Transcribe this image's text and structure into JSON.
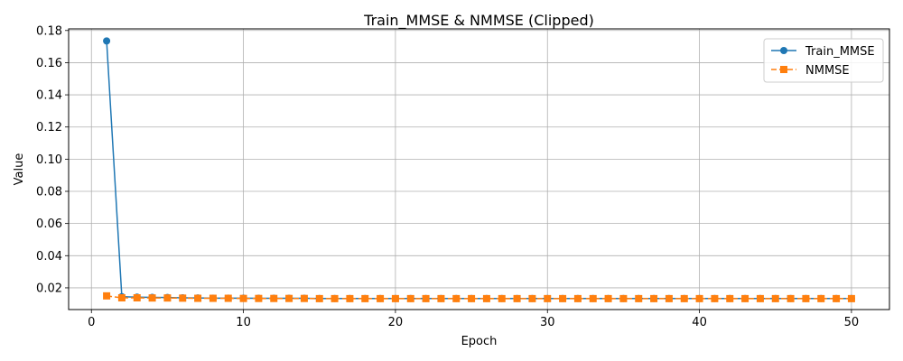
{
  "chart_data": {
    "type": "line",
    "title": "Train_MMSE & NMMSE (Clipped)",
    "xlabel": "Epoch",
    "ylabel": "Value",
    "xlim": [
      -1.5,
      52.5
    ],
    "ylim": [
      0.0065,
      0.181
    ],
    "x_ticks": [
      0,
      10,
      20,
      30,
      40,
      50
    ],
    "x_tick_labels": [
      "0",
      "10",
      "20",
      "30",
      "40",
      "50"
    ],
    "y_ticks": [
      0.02,
      0.04,
      0.06,
      0.08,
      0.1,
      0.12,
      0.14,
      0.16,
      0.18
    ],
    "y_tick_labels": [
      "0.02",
      "0.04",
      "0.06",
      "0.08",
      "0.10",
      "0.12",
      "0.14",
      "0.16",
      "0.18"
    ],
    "grid": true,
    "legend_position": "top-right",
    "x": [
      1,
      2,
      3,
      4,
      5,
      6,
      7,
      8,
      9,
      10,
      11,
      12,
      13,
      14,
      15,
      16,
      17,
      18,
      19,
      20,
      21,
      22,
      23,
      24,
      25,
      26,
      27,
      28,
      29,
      30,
      31,
      32,
      33,
      34,
      35,
      36,
      37,
      38,
      39,
      40,
      41,
      42,
      43,
      44,
      45,
      46,
      47,
      48,
      49,
      50
    ],
    "series": [
      {
        "name": "Train_MMSE",
        "color": "#1f77b4",
        "marker": "circle",
        "linestyle": "solid",
        "values": [
          0.1735,
          0.0145,
          0.0142,
          0.0141,
          0.014,
          0.0138,
          0.0137,
          0.0136,
          0.0136,
          0.0136,
          0.0135,
          0.0135,
          0.0135,
          0.0135,
          0.0134,
          0.0134,
          0.0134,
          0.0134,
          0.0134,
          0.0134,
          0.0134,
          0.0134,
          0.0134,
          0.0134,
          0.0134,
          0.0134,
          0.0134,
          0.0134,
          0.0134,
          0.0134,
          0.0134,
          0.0134,
          0.0134,
          0.0134,
          0.0134,
          0.0134,
          0.0134,
          0.0134,
          0.0134,
          0.0134,
          0.0134,
          0.0134,
          0.0134,
          0.0134,
          0.0134,
          0.0134,
          0.0134,
          0.0134,
          0.0134,
          0.0134
        ]
      },
      {
        "name": "NMMSE",
        "color": "#ff7f0e",
        "marker": "square",
        "linestyle": "dashed",
        "values": [
          0.015,
          0.0138,
          0.0138,
          0.0137,
          0.0137,
          0.0136,
          0.0135,
          0.0135,
          0.0135,
          0.0134,
          0.0134,
          0.0134,
          0.0134,
          0.0134,
          0.0133,
          0.0133,
          0.0133,
          0.0133,
          0.0133,
          0.0133,
          0.0133,
          0.0133,
          0.0133,
          0.0133,
          0.0133,
          0.0133,
          0.0133,
          0.0133,
          0.0133,
          0.0133,
          0.0133,
          0.0133,
          0.0133,
          0.0133,
          0.0133,
          0.0133,
          0.0133,
          0.0133,
          0.0133,
          0.0133,
          0.0133,
          0.0133,
          0.0133,
          0.0133,
          0.0133,
          0.0133,
          0.0133,
          0.0133,
          0.0133,
          0.0133
        ]
      }
    ]
  }
}
